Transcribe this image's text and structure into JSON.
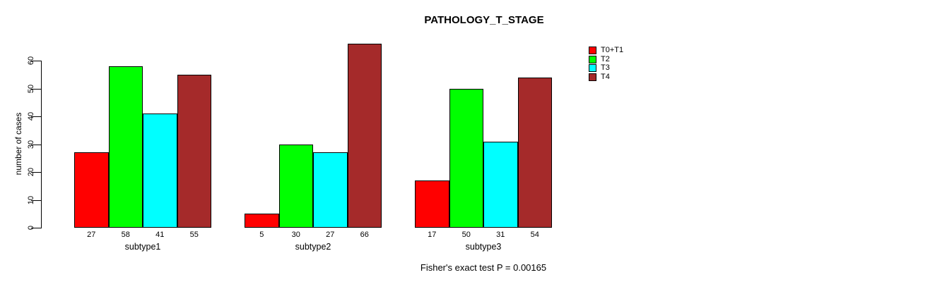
{
  "title": "PATHOLOGY_T_STAGE",
  "footer": "Fisher's exact test P = 0.00165",
  "chart_data": {
    "type": "bar",
    "title": "PATHOLOGY_T_STAGE",
    "categories": [
      "subtype1",
      "subtype2",
      "subtype3"
    ],
    "series": [
      {
        "name": "T0+T1",
        "color": "#ff0000",
        "values": [
          27,
          5,
          17
        ]
      },
      {
        "name": "T2",
        "color": "#00ff00",
        "values": [
          58,
          30,
          50
        ]
      },
      {
        "name": "T3",
        "color": "#00ffff",
        "values": [
          41,
          27,
          31
        ]
      },
      {
        "name": "T4",
        "color": "#a52a2a",
        "values": [
          55,
          66,
          54
        ]
      }
    ],
    "bar_value_labels": [
      [
        "27",
        "58",
        "41",
        "55"
      ],
      [
        "5",
        "30",
        "27",
        "66"
      ],
      [
        "17",
        "50",
        "31",
        "54"
      ]
    ],
    "xlabel": "",
    "ylabel": "number of cases",
    "yticks": [
      0,
      10,
      20,
      30,
      40,
      50,
      60
    ],
    "ylim": [
      0,
      66
    ],
    "grid": false,
    "legend_position": "top-right",
    "annotation": "Fisher's exact test P = 0.00165"
  }
}
